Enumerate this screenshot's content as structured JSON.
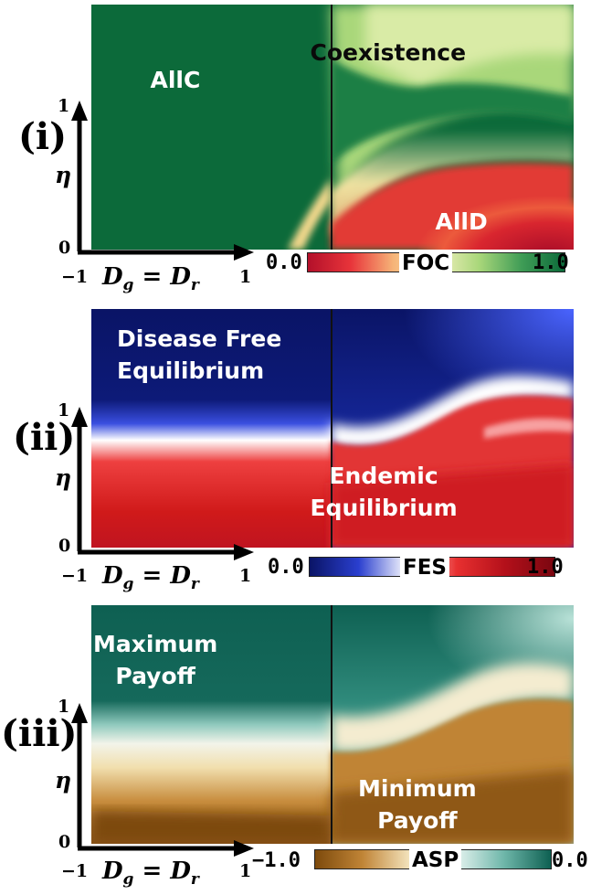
{
  "colors": {
    "foc": [
      "#b3102a",
      "#e8343a",
      "#f6b478",
      "#f4f0c0",
      "#a9d77a",
      "#3f9c56",
      "#0c6a3a"
    ],
    "fes": [
      "#0a1466",
      "#2a3fcf",
      "#ffffff",
      "#e83030",
      "#b3101a",
      "#7a0610"
    ],
    "asp": [
      "#7d4a0c",
      "#c08436",
      "#f3e3bc",
      "#e4f3ef",
      "#6fb7aa",
      "#0e6052"
    ]
  },
  "panels": [
    {
      "roman": "(i)",
      "eta_label": "η",
      "y_ticks": [
        "1",
        "0"
      ],
      "x_ticks": [
        "−1",
        "1"
      ],
      "x_label_lhs": "D",
      "x_label_lhs_sub": "g",
      "x_label_eq": " = ",
      "x_label_rhs": "D",
      "x_label_rhs_sub": "r",
      "regions": [
        {
          "text": "AllC",
          "color": "#ffffff"
        },
        {
          "text": "Coexistence",
          "color": "#0a0a0a"
        },
        {
          "text": "AllD",
          "color": "#ffffff"
        }
      ],
      "colorbar": {
        "label": "FOC",
        "min": "0.0",
        "max": "1.0"
      }
    },
    {
      "roman": "(ii)",
      "eta_label": "η",
      "y_ticks": [
        "1",
        "0"
      ],
      "x_ticks": [
        "−1",
        "1"
      ],
      "x_label_lhs": "D",
      "x_label_lhs_sub": "g",
      "x_label_eq": " = ",
      "x_label_rhs": "D",
      "x_label_rhs_sub": "r",
      "regions": [
        {
          "text": "Disease Free\nEquilibrium",
          "color": "#ffffff"
        },
        {
          "text": "Endemic\nEquilibrium",
          "color": "#ffffff"
        }
      ],
      "colorbar": {
        "label": "FES",
        "min": "0.0",
        "max": "1.0"
      }
    },
    {
      "roman": "(iii)",
      "eta_label": "η",
      "y_ticks": [
        "1",
        "0"
      ],
      "x_ticks": [
        "−1",
        "1"
      ],
      "x_label_lhs": "D",
      "x_label_lhs_sub": "g",
      "x_label_eq": " = ",
      "x_label_rhs": "D",
      "x_label_rhs_sub": "r",
      "regions": [
        {
          "text": "Maximum\nPayoff",
          "color": "#ffffff"
        },
        {
          "text": "Minimum\nPayoff",
          "color": "#ffffff"
        }
      ],
      "colorbar": {
        "label": "ASP",
        "min": "−1.0",
        "max": "0.0"
      }
    }
  ]
}
